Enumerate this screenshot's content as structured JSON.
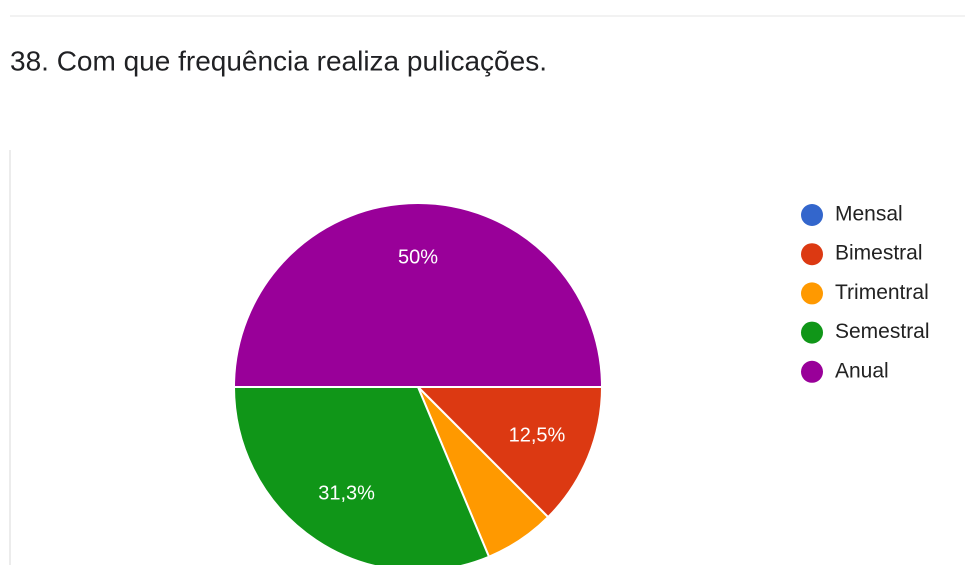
{
  "chart_data": {
    "type": "pie",
    "title": "38. Com que frequência realiza pulicações.",
    "categories": [
      "Mensal",
      "Bimestral",
      "Trimentral",
      "Semestral",
      "Anual"
    ],
    "values": [
      0,
      12.5,
      6.2,
      31.3,
      50
    ],
    "value_labels": [
      null,
      "12,5%",
      null,
      "31,3%",
      "50%"
    ],
    "colors": [
      "#3366cc",
      "#dc3912",
      "#ff9900",
      "#109618",
      "#990099"
    ],
    "legend": "right"
  }
}
